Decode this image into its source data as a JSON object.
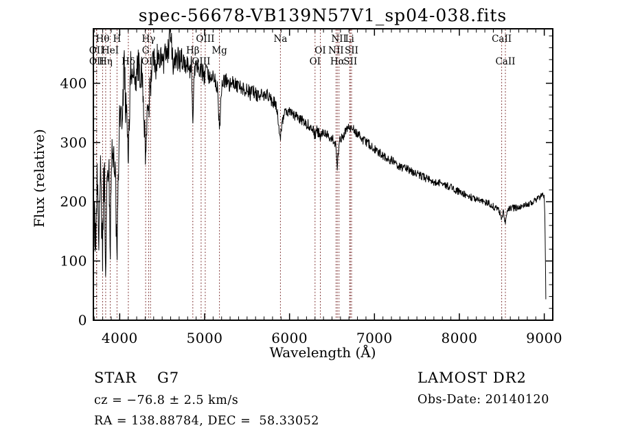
{
  "title": "spec-56678-VB139N57V1_sp04-038.fits",
  "annotations": {
    "class_label": "STAR",
    "subclass": "G7",
    "cz": "cz = −76.8 ± 2.5 km/s",
    "coords": "RA = 138.88784, DEC =  58.33052",
    "survey": "LAMOST DR2",
    "obs_date": "Obs-Date: 20140120"
  },
  "colors": {
    "background": "#ffffff",
    "spectrum": "#000000",
    "frame": "#000000",
    "line_marker": "#833a3a"
  },
  "chart_data": {
    "type": "line",
    "title": "spec-56678-VB139N57V1_sp04-038.fits",
    "xlabel": "Wavelength (Å)",
    "ylabel": "Flux (relative)",
    "xlim": [
      3690,
      9100
    ],
    "ylim": [
      0,
      492
    ],
    "x_ticks": [
      4000,
      5000,
      6000,
      7000,
      8000,
      9000
    ],
    "x_minor_step": 100,
    "y_ticks": [
      0,
      100,
      200,
      300,
      400
    ],
    "y_minor_step": 20,
    "grid": false,
    "legend": false,
    "marker_color": "#833a3a",
    "line_label_rows_y": [
      61,
      78,
      94
    ],
    "spectral_lines": [
      {
        "label": "Hθ",
        "wavelength": 3798,
        "row": 1
      },
      {
        "label": "H",
        "wavelength": 3968,
        "row": 1
      },
      {
        "label": "Hγ",
        "wavelength": 4340,
        "row": 1
      },
      {
        "label": "OIII",
        "wavelength": 5007,
        "row": 1
      },
      {
        "label": "Na",
        "wavelength": 5893,
        "row": 1
      },
      {
        "label": "NII",
        "wavelength": 6583,
        "row": 1
      },
      {
        "label": "Li",
        "wavelength": 6708,
        "row": 1
      },
      {
        "label": "CaII",
        "wavelength": 8498,
        "row": 1
      },
      {
        "label": "OII",
        "wavelength": 3727,
        "row": 2
      },
      {
        "label": "HeI",
        "wavelength": 3889,
        "row": 2
      },
      {
        "label": "G",
        "wavelength": 4305,
        "row": 2
      },
      {
        "label": "Hβ",
        "wavelength": 4861,
        "row": 2
      },
      {
        "label": "Mg",
        "wavelength": 5175,
        "row": 2
      },
      {
        "label": "OI",
        "wavelength": 6363,
        "row": 2
      },
      {
        "label": "NII",
        "wavelength": 6548,
        "row": 2
      },
      {
        "label": "SII",
        "wavelength": 6731,
        "row": 2
      },
      {
        "label": "OII",
        "wavelength": 3729,
        "row": 3
      },
      {
        "label": "Hη",
        "wavelength": 3835,
        "row": 3
      },
      {
        "label": "Hδ",
        "wavelength": 4102,
        "row": 3
      },
      {
        "label": "OIII",
        "wavelength": 4363,
        "row": 3
      },
      {
        "label": "OIII",
        "wavelength": 4959,
        "row": 3
      },
      {
        "label": "OI",
        "wavelength": 6300,
        "row": 3
      },
      {
        "label": "Hα",
        "wavelength": 6563,
        "row": 3
      },
      {
        "label": "SII",
        "wavelength": 6716,
        "row": 3
      },
      {
        "label": "CaII",
        "wavelength": 8542,
        "row": 3
      }
    ],
    "series": [
      {
        "name": "spectrum",
        "color": "#000000",
        "sample_step": 4,
        "noise_seed": 20140120,
        "noise_amplitude": [
          [
            3690,
            45
          ],
          [
            3990,
            38
          ],
          [
            4150,
            30
          ],
          [
            4500,
            24
          ],
          [
            4900,
            18
          ],
          [
            5200,
            14
          ],
          [
            5600,
            12
          ],
          [
            6000,
            10
          ],
          [
            6500,
            9
          ],
          [
            7000,
            8
          ],
          [
            7600,
            7
          ],
          [
            8300,
            6
          ],
          [
            8700,
            6
          ],
          [
            9020,
            5
          ]
        ],
        "anchor_points": [
          [
            3690,
            45
          ],
          [
            3696,
            140
          ],
          [
            3702,
            210
          ],
          [
            3710,
            150
          ],
          [
            3718,
            95
          ],
          [
            3727,
            165
          ],
          [
            3736,
            250
          ],
          [
            3746,
            185
          ],
          [
            3756,
            120
          ],
          [
            3766,
            225
          ],
          [
            3776,
            265
          ],
          [
            3786,
            165
          ],
          [
            3798,
            115
          ],
          [
            3808,
            205
          ],
          [
            3818,
            265
          ],
          [
            3827,
            185
          ],
          [
            3835,
            95
          ],
          [
            3845,
            215
          ],
          [
            3856,
            265
          ],
          [
            3866,
            205
          ],
          [
            3876,
            245
          ],
          [
            3889,
            125
          ],
          [
            3900,
            235
          ],
          [
            3912,
            300
          ],
          [
            3925,
            265
          ],
          [
            3940,
            285
          ],
          [
            3954,
            210
          ],
          [
            3968,
            100
          ],
          [
            3981,
            245
          ],
          [
            3995,
            325
          ],
          [
            4010,
            365
          ],
          [
            4025,
            305
          ],
          [
            4040,
            385
          ],
          [
            4055,
            425
          ],
          [
            4070,
            365
          ],
          [
            4085,
            335
          ],
          [
            4102,
            275
          ],
          [
            4115,
            345
          ],
          [
            4130,
            425
          ],
          [
            4145,
            405
          ],
          [
            4160,
            435
          ],
          [
            4180,
            395
          ],
          [
            4200,
            415
          ],
          [
            4220,
            435
          ],
          [
            4240,
            405
          ],
          [
            4260,
            425
          ],
          [
            4280,
            365
          ],
          [
            4305,
            270
          ],
          [
            4322,
            345
          ],
          [
            4340,
            335
          ],
          [
            4355,
            395
          ],
          [
            4363,
            375
          ],
          [
            4380,
            435
          ],
          [
            4400,
            455
          ],
          [
            4420,
            425
          ],
          [
            4440,
            445
          ],
          [
            4460,
            465
          ],
          [
            4480,
            435
          ],
          [
            4500,
            455
          ],
          [
            4520,
            435
          ],
          [
            4540,
            455
          ],
          [
            4560,
            445
          ],
          [
            4580,
            465
          ],
          [
            4600,
            492
          ],
          [
            4615,
            455
          ],
          [
            4630,
            435
          ],
          [
            4650,
            448
          ],
          [
            4670,
            432
          ],
          [
            4690,
            446
          ],
          [
            4710,
            432
          ],
          [
            4730,
            442
          ],
          [
            4750,
            432
          ],
          [
            4770,
            437
          ],
          [
            4790,
            427
          ],
          [
            4810,
            432
          ],
          [
            4830,
            422
          ],
          [
            4846,
            432
          ],
          [
            4861,
            340
          ],
          [
            4876,
            422
          ],
          [
            4890,
            432
          ],
          [
            4910,
            422
          ],
          [
            4930,
            427
          ],
          [
            4950,
            417
          ],
          [
            4970,
            422
          ],
          [
            4990,
            412
          ],
          [
            5010,
            417
          ],
          [
            5030,
            422
          ],
          [
            5050,
            412
          ],
          [
            5070,
            417
          ],
          [
            5090,
            407
          ],
          [
            5110,
            412
          ],
          [
            5130,
            402
          ],
          [
            5152,
            392
          ],
          [
            5175,
            318
          ],
          [
            5200,
            397
          ],
          [
            5230,
            407
          ],
          [
            5260,
            402
          ],
          [
            5300,
            397
          ],
          [
            5340,
            402
          ],
          [
            5380,
            392
          ],
          [
            5420,
            397
          ],
          [
            5460,
            387
          ],
          [
            5500,
            392
          ],
          [
            5540,
            382
          ],
          [
            5580,
            387
          ],
          [
            5620,
            377
          ],
          [
            5660,
            382
          ],
          [
            5700,
            377
          ],
          [
            5740,
            382
          ],
          [
            5780,
            372
          ],
          [
            5820,
            367
          ],
          [
            5850,
            357
          ],
          [
            5872,
            332
          ],
          [
            5893,
            307
          ],
          [
            5915,
            332
          ],
          [
            5940,
            347
          ],
          [
            5970,
            352
          ],
          [
            6000,
            352
          ],
          [
            6040,
            347
          ],
          [
            6080,
            342
          ],
          [
            6120,
            340
          ],
          [
            6160,
            337
          ],
          [
            6200,
            332
          ],
          [
            6240,
            327
          ],
          [
            6280,
            322
          ],
          [
            6300,
            312
          ],
          [
            6320,
            320
          ],
          [
            6345,
            317
          ],
          [
            6363,
            307
          ],
          [
            6385,
            317
          ],
          [
            6420,
            314
          ],
          [
            6460,
            312
          ],
          [
            6500,
            307
          ],
          [
            6530,
            302
          ],
          [
            6548,
            292
          ],
          [
            6563,
            258
          ],
          [
            6580,
            297
          ],
          [
            6600,
            307
          ],
          [
            6630,
            312
          ],
          [
            6660,
            317
          ],
          [
            6690,
            327
          ],
          [
            6708,
            322
          ],
          [
            6720,
            327
          ],
          [
            6731,
            320
          ],
          [
            6760,
            322
          ],
          [
            6790,
            317
          ],
          [
            6820,
            312
          ],
          [
            6850,
            307
          ],
          [
            6880,
            302
          ],
          [
            6910,
            300
          ],
          [
            6940,
            297
          ],
          [
            6970,
            292
          ],
          [
            7000,
            290
          ],
          [
            7050,
            284
          ],
          [
            7100,
            277
          ],
          [
            7150,
            274
          ],
          [
            7200,
            270
          ],
          [
            7250,
            264
          ],
          [
            7300,
            260
          ],
          [
            7350,
            257
          ],
          [
            7400,
            254
          ],
          [
            7450,
            250
          ],
          [
            7500,
            247
          ],
          [
            7550,
            244
          ],
          [
            7600,
            240
          ],
          [
            7650,
            237
          ],
          [
            7700,
            234
          ],
          [
            7750,
            232
          ],
          [
            7800,
            230
          ],
          [
            7850,
            227
          ],
          [
            7900,
            224
          ],
          [
            7950,
            220
          ],
          [
            8000,
            217
          ],
          [
            8050,
            214
          ],
          [
            8100,
            210
          ],
          [
            8150,
            207
          ],
          [
            8200,
            204
          ],
          [
            8250,
            202
          ],
          [
            8300,
            200
          ],
          [
            8350,
            197
          ],
          [
            8400,
            192
          ],
          [
            8450,
            187
          ],
          [
            8480,
            180
          ],
          [
            8498,
            170
          ],
          [
            8520,
            186
          ],
          [
            8542,
            162
          ],
          [
            8570,
            186
          ],
          [
            8600,
            191
          ],
          [
            8650,
            189
          ],
          [
            8700,
            191
          ],
          [
            8750,
            193
          ],
          [
            8800,
            196
          ],
          [
            8850,
            199
          ],
          [
            8900,
            202
          ],
          [
            8930,
            206
          ],
          [
            8960,
            209
          ],
          [
            8985,
            212
          ],
          [
            9000,
            206
          ],
          [
            9008,
            170
          ],
          [
            9014,
            90
          ],
          [
            9020,
            8
          ]
        ]
      }
    ]
  }
}
